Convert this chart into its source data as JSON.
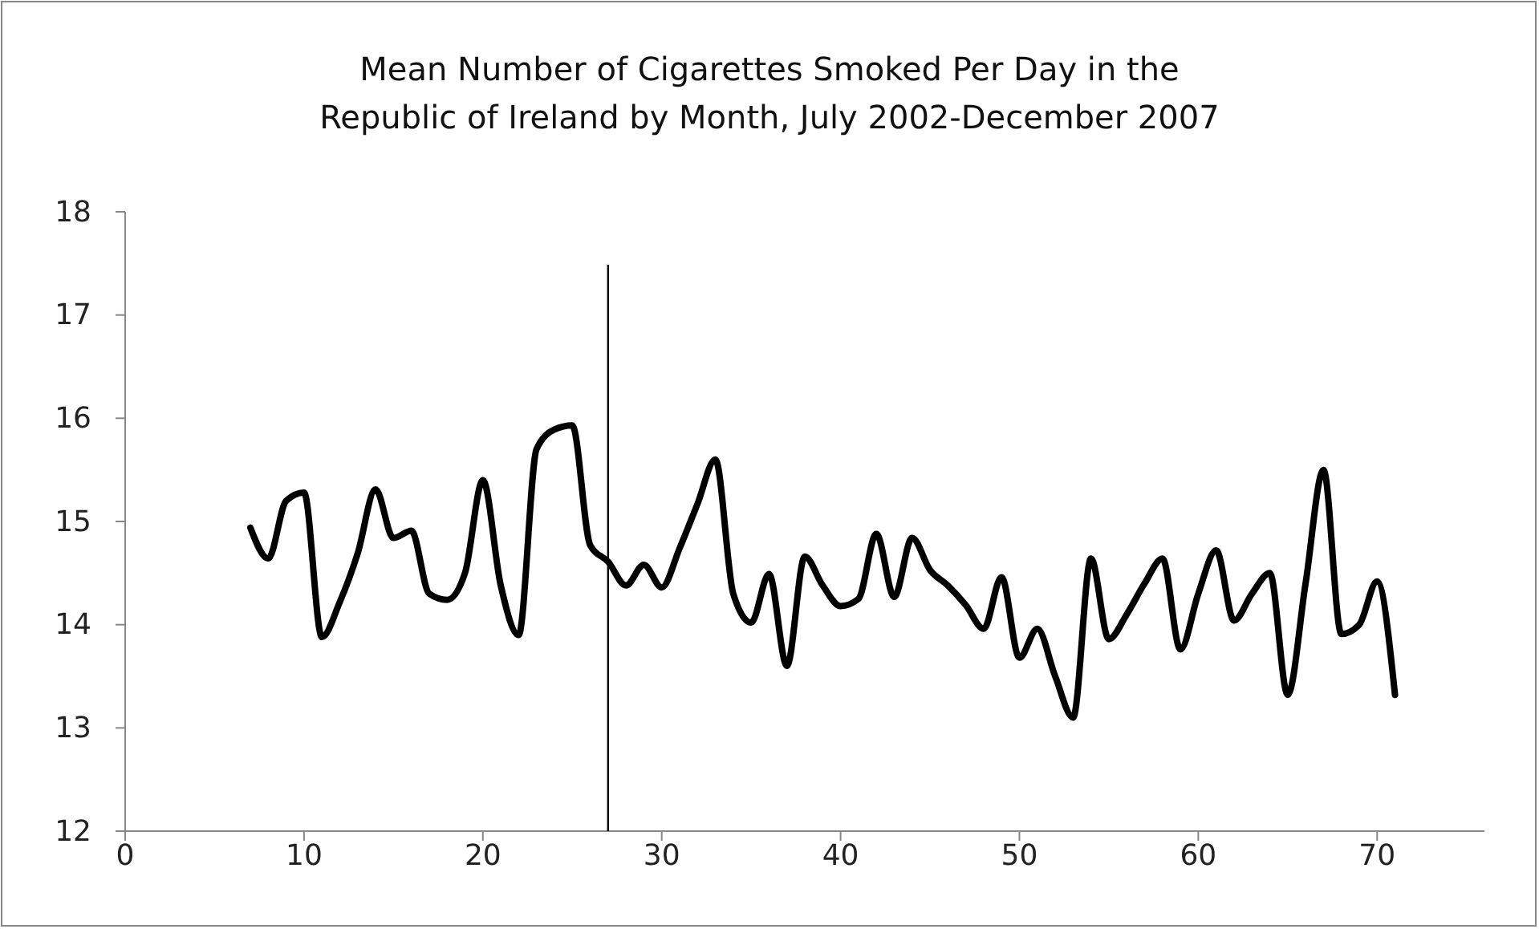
{
  "chart_data": {
    "type": "line",
    "title": "Mean Number of Cigarettes Smoked Per Day in the Republic of Ireland by Month, July 2002-December 2007",
    "x": [
      7,
      8,
      9,
      10,
      11,
      12,
      13,
      14,
      15,
      16,
      17,
      18,
      19,
      20,
      21,
      22,
      23,
      24,
      25,
      26,
      27,
      28,
      29,
      30,
      31,
      32,
      33,
      34,
      35,
      36,
      37,
      38,
      39,
      40,
      41,
      42,
      43,
      44,
      45,
      46,
      47,
      48,
      49,
      50,
      51,
      52,
      53,
      54,
      55,
      56,
      57,
      58,
      59,
      60,
      61,
      62,
      63,
      64,
      65,
      66,
      67,
      68,
      69,
      70,
      71
    ],
    "series": [
      {
        "color": "#000000",
        "values": [
          14.94,
          14.64,
          15.2,
          15.28,
          13.88,
          14.22,
          14.69,
          15.31,
          14.84,
          14.91,
          14.3,
          14.24,
          14.5,
          15.4,
          14.38,
          13.9,
          15.7,
          15.89,
          15.93,
          14.77,
          14.61,
          14.38,
          14.58,
          14.36,
          14.74,
          15.17,
          15.6,
          14.3,
          14.02,
          14.49,
          13.6,
          14.66,
          14.38,
          14.18,
          14.25,
          14.88,
          14.27,
          14.84,
          14.53,
          14.38,
          14.19,
          13.96,
          14.46,
          13.68,
          13.96,
          13.5,
          13.1,
          14.64,
          13.86,
          14.1,
          14.4,
          14.64,
          13.76,
          14.3,
          14.72,
          14.04,
          14.3,
          14.5,
          13.32,
          14.4,
          15.5,
          13.91,
          14.0,
          14.42,
          13.32
        ]
      }
    ],
    "xlim": [
      0,
      76
    ],
    "xticks": [
      0,
      10,
      20,
      30,
      40,
      50,
      60,
      70
    ],
    "ylim": [
      12,
      18
    ],
    "yticks": [
      12,
      13,
      14,
      15,
      16,
      17,
      18
    ],
    "ref_lines": [
      {
        "axis": "x",
        "value": 27,
        "color": "#000000"
      }
    ],
    "marker": "none",
    "line_style": "solid"
  }
}
